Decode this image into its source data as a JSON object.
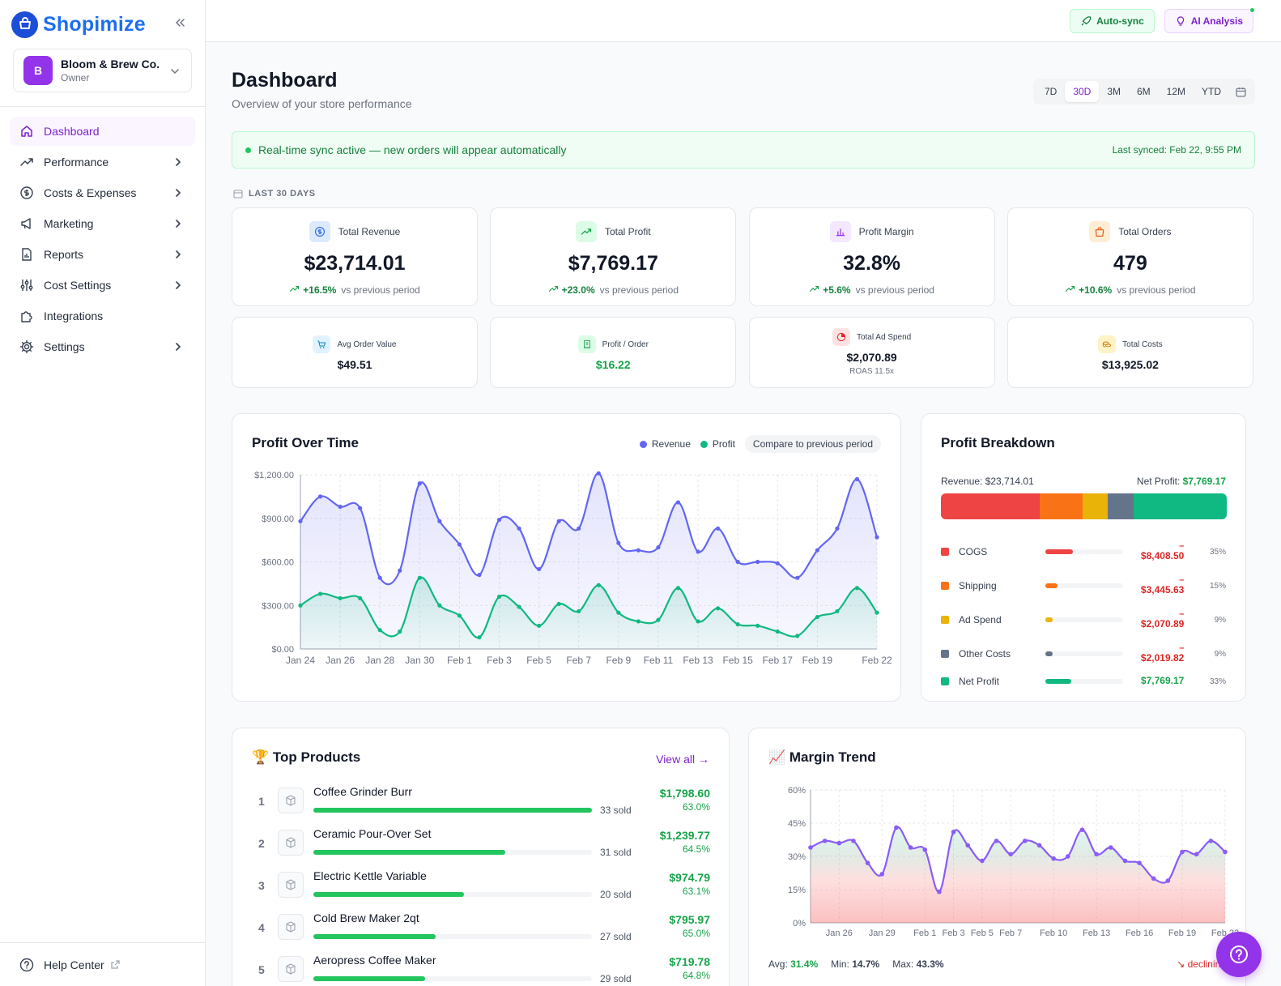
{
  "brand": {
    "name": "Shopimize"
  },
  "store": {
    "initial": "B",
    "name": "Bloom & Brew Co.",
    "role": "Owner"
  },
  "nav": [
    {
      "label": "Dashboard",
      "icon": "home-icon",
      "active": true
    },
    {
      "label": "Performance",
      "icon": "trend-icon"
    },
    {
      "label": "Costs & Expenses",
      "icon": "dollar-icon"
    },
    {
      "label": "Marketing",
      "icon": "megaphone-icon"
    },
    {
      "label": "Reports",
      "icon": "report-icon"
    },
    {
      "label": "Cost Settings",
      "icon": "sliders-icon"
    },
    {
      "label": "Integrations",
      "icon": "puzzle-icon"
    },
    {
      "label": "Settings",
      "icon": "gear-icon"
    }
  ],
  "help": {
    "label": "Help Center"
  },
  "topbar": {
    "autosync": "Auto-sync",
    "ai": "AI Analysis"
  },
  "header": {
    "title": "Dashboard",
    "subtitle": "Overview of your store performance"
  },
  "ranges": [
    "7D",
    "30D",
    "3M",
    "6M",
    "12M",
    "YTD"
  ],
  "range_selected": "30D",
  "sync": {
    "message": "Real-time sync active — new orders will appear automatically",
    "last": "Last synced: Feb 22, 9:55 PM"
  },
  "period_label": "LAST 30 DAYS",
  "kpis": [
    {
      "label": "Total Revenue",
      "value": "$23,714.01",
      "delta": "+16.5%",
      "vs": "vs previous period",
      "icon": "dollar-icon",
      "bg": "#dbeafe",
      "fg": "#2563eb"
    },
    {
      "label": "Total Profit",
      "value": "$7,769.17",
      "delta": "+23.0%",
      "vs": "vs previous period",
      "icon": "trend-up-icon",
      "bg": "#dcfce7",
      "fg": "#16a34a"
    },
    {
      "label": "Profit Margin",
      "value": "32.8%",
      "delta": "+5.6%",
      "vs": "vs previous period",
      "icon": "bar-chart-icon",
      "bg": "#f3e8ff",
      "fg": "#9333ea"
    },
    {
      "label": "Total Orders",
      "value": "479",
      "delta": "+10.6%",
      "vs": "vs previous period",
      "icon": "bag-icon",
      "bg": "#ffedd5",
      "fg": "#ea580c"
    }
  ],
  "kpis_small": [
    {
      "label": "Avg Order Value",
      "value": "$49.51",
      "sub": "",
      "icon": "cart-icon",
      "bg": "#e0f2fe",
      "fg": "#0284c7",
      "color": "#111827"
    },
    {
      "label": "Profit / Order",
      "value": "$16.22",
      "sub": "",
      "icon": "receipt-icon",
      "bg": "#dcfce7",
      "fg": "#16a34a",
      "color": "#16a34a"
    },
    {
      "label": "Total Ad Spend",
      "value": "$2,070.89",
      "sub": "ROAS 11.5x",
      "icon": "target-icon",
      "bg": "#fee2e2",
      "fg": "#dc2626",
      "color": "#111827"
    },
    {
      "label": "Total Costs",
      "value": "$13,925.02",
      "sub": "",
      "icon": "coins-icon",
      "bg": "#fef3c7",
      "fg": "#d97706",
      "color": "#111827"
    }
  ],
  "profit_over_time": {
    "title": "Profit Over Time",
    "legend": [
      "Revenue",
      "Profit"
    ],
    "compare": "Compare to previous period"
  },
  "chart_data": [
    {
      "type": "area",
      "x": [
        "Jan 24",
        "Jan 25",
        "Jan 26",
        "Jan 27",
        "Jan 28",
        "Jan 29",
        "Jan 30",
        "Jan 31",
        "Feb 1",
        "Feb 2",
        "Feb 3",
        "Feb 4",
        "Feb 5",
        "Feb 6",
        "Feb 7",
        "Feb 8",
        "Feb 9",
        "Feb 10",
        "Feb 11",
        "Feb 12",
        "Feb 13",
        "Feb 14",
        "Feb 15",
        "Feb 16",
        "Feb 17",
        "Feb 18",
        "Feb 19",
        "Feb 20",
        "Feb 21",
        "Feb 22"
      ],
      "xticks": [
        "Jan 24",
        "Jan 26",
        "Jan 28",
        "Jan 30",
        "Feb 1",
        "Feb 3",
        "Feb 5",
        "Feb 7",
        "Feb 9",
        "Feb 11",
        "Feb 13",
        "Feb 15",
        "Feb 17",
        "Feb 19",
        "Feb 22"
      ],
      "series": [
        {
          "name": "Revenue",
          "color": "#6366f1",
          "values": [
            880,
            1050,
            980,
            970,
            490,
            540,
            1140,
            880,
            720,
            510,
            890,
            830,
            550,
            880,
            830,
            1210,
            730,
            680,
            700,
            1010,
            670,
            830,
            600,
            600,
            590,
            490,
            680,
            830,
            1170,
            770
          ]
        },
        {
          "name": "Profit",
          "color": "#10b981",
          "values": [
            300,
            380,
            350,
            350,
            130,
            120,
            490,
            300,
            230,
            80,
            360,
            290,
            160,
            310,
            260,
            440,
            250,
            190,
            200,
            420,
            190,
            280,
            170,
            160,
            120,
            90,
            220,
            260,
            420,
            250
          ]
        }
      ],
      "ylim": [
        0,
        1200
      ],
      "yticks": [
        "$0.00",
        "$300.00",
        "$600.00",
        "$900.00",
        "$1,200.00"
      ]
    },
    {
      "type": "area",
      "x": [
        "Jan 24",
        "Jan 25",
        "Jan 26",
        "Jan 27",
        "Jan 28",
        "Jan 29",
        "Jan 30",
        "Jan 31",
        "Feb 1",
        "Feb 2",
        "Feb 3",
        "Feb 4",
        "Feb 5",
        "Feb 6",
        "Feb 7",
        "Feb 8",
        "Feb 9",
        "Feb 10",
        "Feb 11",
        "Feb 12",
        "Feb 13",
        "Feb 14",
        "Feb 15",
        "Feb 16",
        "Feb 17",
        "Feb 18",
        "Feb 19",
        "Feb 20",
        "Feb 21",
        "Feb 22"
      ],
      "xticks": [
        "Jan 26",
        "Jan 29",
        "Feb 1",
        "Feb 3",
        "Feb 5",
        "Feb 7",
        "Feb 10",
        "Feb 13",
        "Feb 16",
        "Feb 19",
        "Feb 22"
      ],
      "series": [
        {
          "name": "Margin",
          "color": "#8b5cf6",
          "values": [
            34,
            37,
            36,
            37,
            27,
            22,
            43,
            34,
            33,
            14,
            41,
            35,
            28,
            37,
            31,
            37,
            35,
            29,
            30,
            42,
            31,
            34,
            28,
            27,
            20,
            19,
            32,
            31,
            37,
            32
          ]
        }
      ],
      "ylim": [
        0,
        60
      ],
      "yticks": [
        "0%",
        "15%",
        "30%",
        "45%",
        "60%"
      ]
    }
  ],
  "breakdown": {
    "title": "Profit Breakdown",
    "revenue": "Revenue: $23,714.01",
    "net_label": "Net Profit: ",
    "net_value": "$7,769.17",
    "items": [
      {
        "name": "COGS",
        "amount": "$8,408.50",
        "pct": "35%",
        "share": 35,
        "color": "#ef4444",
        "neg": true
      },
      {
        "name": "Shipping",
        "amount": "$3,445.63",
        "pct": "15%",
        "share": 15,
        "color": "#f97316",
        "neg": true
      },
      {
        "name": "Ad Spend",
        "amount": "$2,070.89",
        "pct": "9%",
        "share": 9,
        "color": "#eab308",
        "neg": true
      },
      {
        "name": "Other Costs",
        "amount": "$2,019.82",
        "pct": "9%",
        "share": 9,
        "color": "#64748b",
        "neg": true
      },
      {
        "name": "Net Profit",
        "amount": "$7,769.17",
        "pct": "33%",
        "share": 33,
        "color": "#10b981",
        "neg": false
      }
    ],
    "minus": "–"
  },
  "top_products": {
    "title": "🏆 Top Products",
    "view_all": "View all →",
    "items": [
      {
        "rank": "1",
        "name": "Coffee Grinder Burr",
        "sold": "33 sold",
        "amount": "$1,798.60",
        "margin": "63.0%",
        "share": 100
      },
      {
        "rank": "2",
        "name": "Ceramic Pour-Over Set",
        "sold": "31 sold",
        "amount": "$1,239.77",
        "margin": "64.5%",
        "share": 69
      },
      {
        "rank": "3",
        "name": "Electric Kettle Variable",
        "sold": "20 sold",
        "amount": "$974.79",
        "margin": "63.1%",
        "share": 54
      },
      {
        "rank": "4",
        "name": "Cold Brew Maker 2qt",
        "sold": "27 sold",
        "amount": "$795.97",
        "margin": "65.0%",
        "share": 44
      },
      {
        "rank": "5",
        "name": "Aeropress Coffee Maker",
        "sold": "29 sold",
        "amount": "$719.78",
        "margin": "64.8%",
        "share": 40
      }
    ]
  },
  "margin_trend": {
    "title": "📈 Margin Trend",
    "avg_label": "Avg:",
    "avg": "31.4%",
    "min_label": "Min:",
    "min": "14.7%",
    "max_label": "Max:",
    "max": "43.3%",
    "trend": "↘ declining"
  },
  "colors": {
    "accent": "#9333ea",
    "brand": "#1d6ef0",
    "positive": "#16a34a",
    "negative": "#dc2626"
  }
}
